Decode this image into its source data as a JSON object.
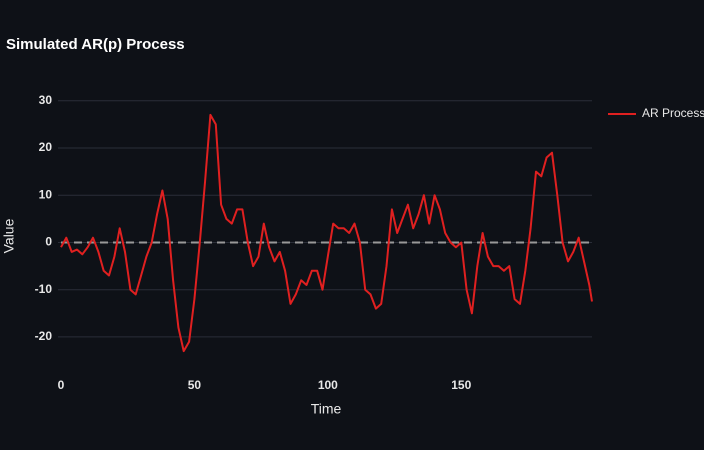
{
  "chart_data": {
    "type": "line",
    "title": "Simulated AR(p) Process",
    "xlabel": "Time",
    "ylabel": "Value",
    "x": [
      0,
      2,
      4,
      6,
      8,
      10,
      12,
      14,
      16,
      18,
      20,
      22,
      24,
      26,
      28,
      30,
      32,
      34,
      36,
      38,
      40,
      42,
      44,
      46,
      48,
      50,
      52,
      54,
      56,
      58,
      60,
      62,
      64,
      66,
      68,
      70,
      72,
      74,
      76,
      78,
      80,
      82,
      84,
      86,
      88,
      90,
      92,
      94,
      96,
      98,
      100,
      102,
      104,
      106,
      108,
      110,
      112,
      114,
      116,
      118,
      120,
      122,
      124,
      126,
      128,
      130,
      132,
      134,
      136,
      138,
      140,
      142,
      144,
      146,
      148,
      150,
      152,
      154,
      156,
      158,
      160,
      162,
      164,
      166,
      168,
      170,
      172,
      174,
      176,
      178,
      180,
      182,
      184,
      186,
      188,
      190,
      192,
      194,
      196,
      198,
      199
    ],
    "series": [
      {
        "name": "AR Process",
        "color": "#e02020",
        "values": [
          -1,
          1,
          -2,
          -1.5,
          -2.5,
          -1,
          1,
          -2,
          -6,
          -7,
          -3,
          3,
          -2,
          -10,
          -11,
          -7,
          -3,
          0,
          6,
          11,
          5,
          -8,
          -18,
          -23,
          -21,
          -12,
          0,
          13,
          27,
          25,
          8,
          5,
          4,
          7,
          7,
          0,
          -5,
          -3,
          4,
          -1,
          -4,
          -2,
          -6,
          -13,
          -11,
          -8,
          -9,
          -6,
          -6,
          -10,
          -3,
          4,
          3,
          3,
          2,
          4,
          0,
          -10,
          -11,
          -14,
          -13,
          -5,
          7,
          2,
          5,
          8,
          3,
          6,
          10,
          4,
          10,
          7,
          2,
          0,
          -1,
          0,
          -10,
          -15,
          -5,
          2,
          -3,
          -5,
          -5,
          -6,
          -5,
          -12,
          -13,
          -6,
          3,
          15,
          14,
          18,
          19,
          10,
          0,
          -4,
          -2,
          1,
          -4,
          -9,
          -12.5
        ]
      }
    ],
    "hlines": [
      0
    ],
    "xlim": [
      0,
      199
    ],
    "ylim": [
      -27,
      33
    ],
    "xticks": [
      0,
      50,
      100,
      150
    ],
    "yticks": [
      -20,
      -10,
      0,
      10,
      20,
      30
    ],
    "grid": true,
    "legend": "right"
  }
}
